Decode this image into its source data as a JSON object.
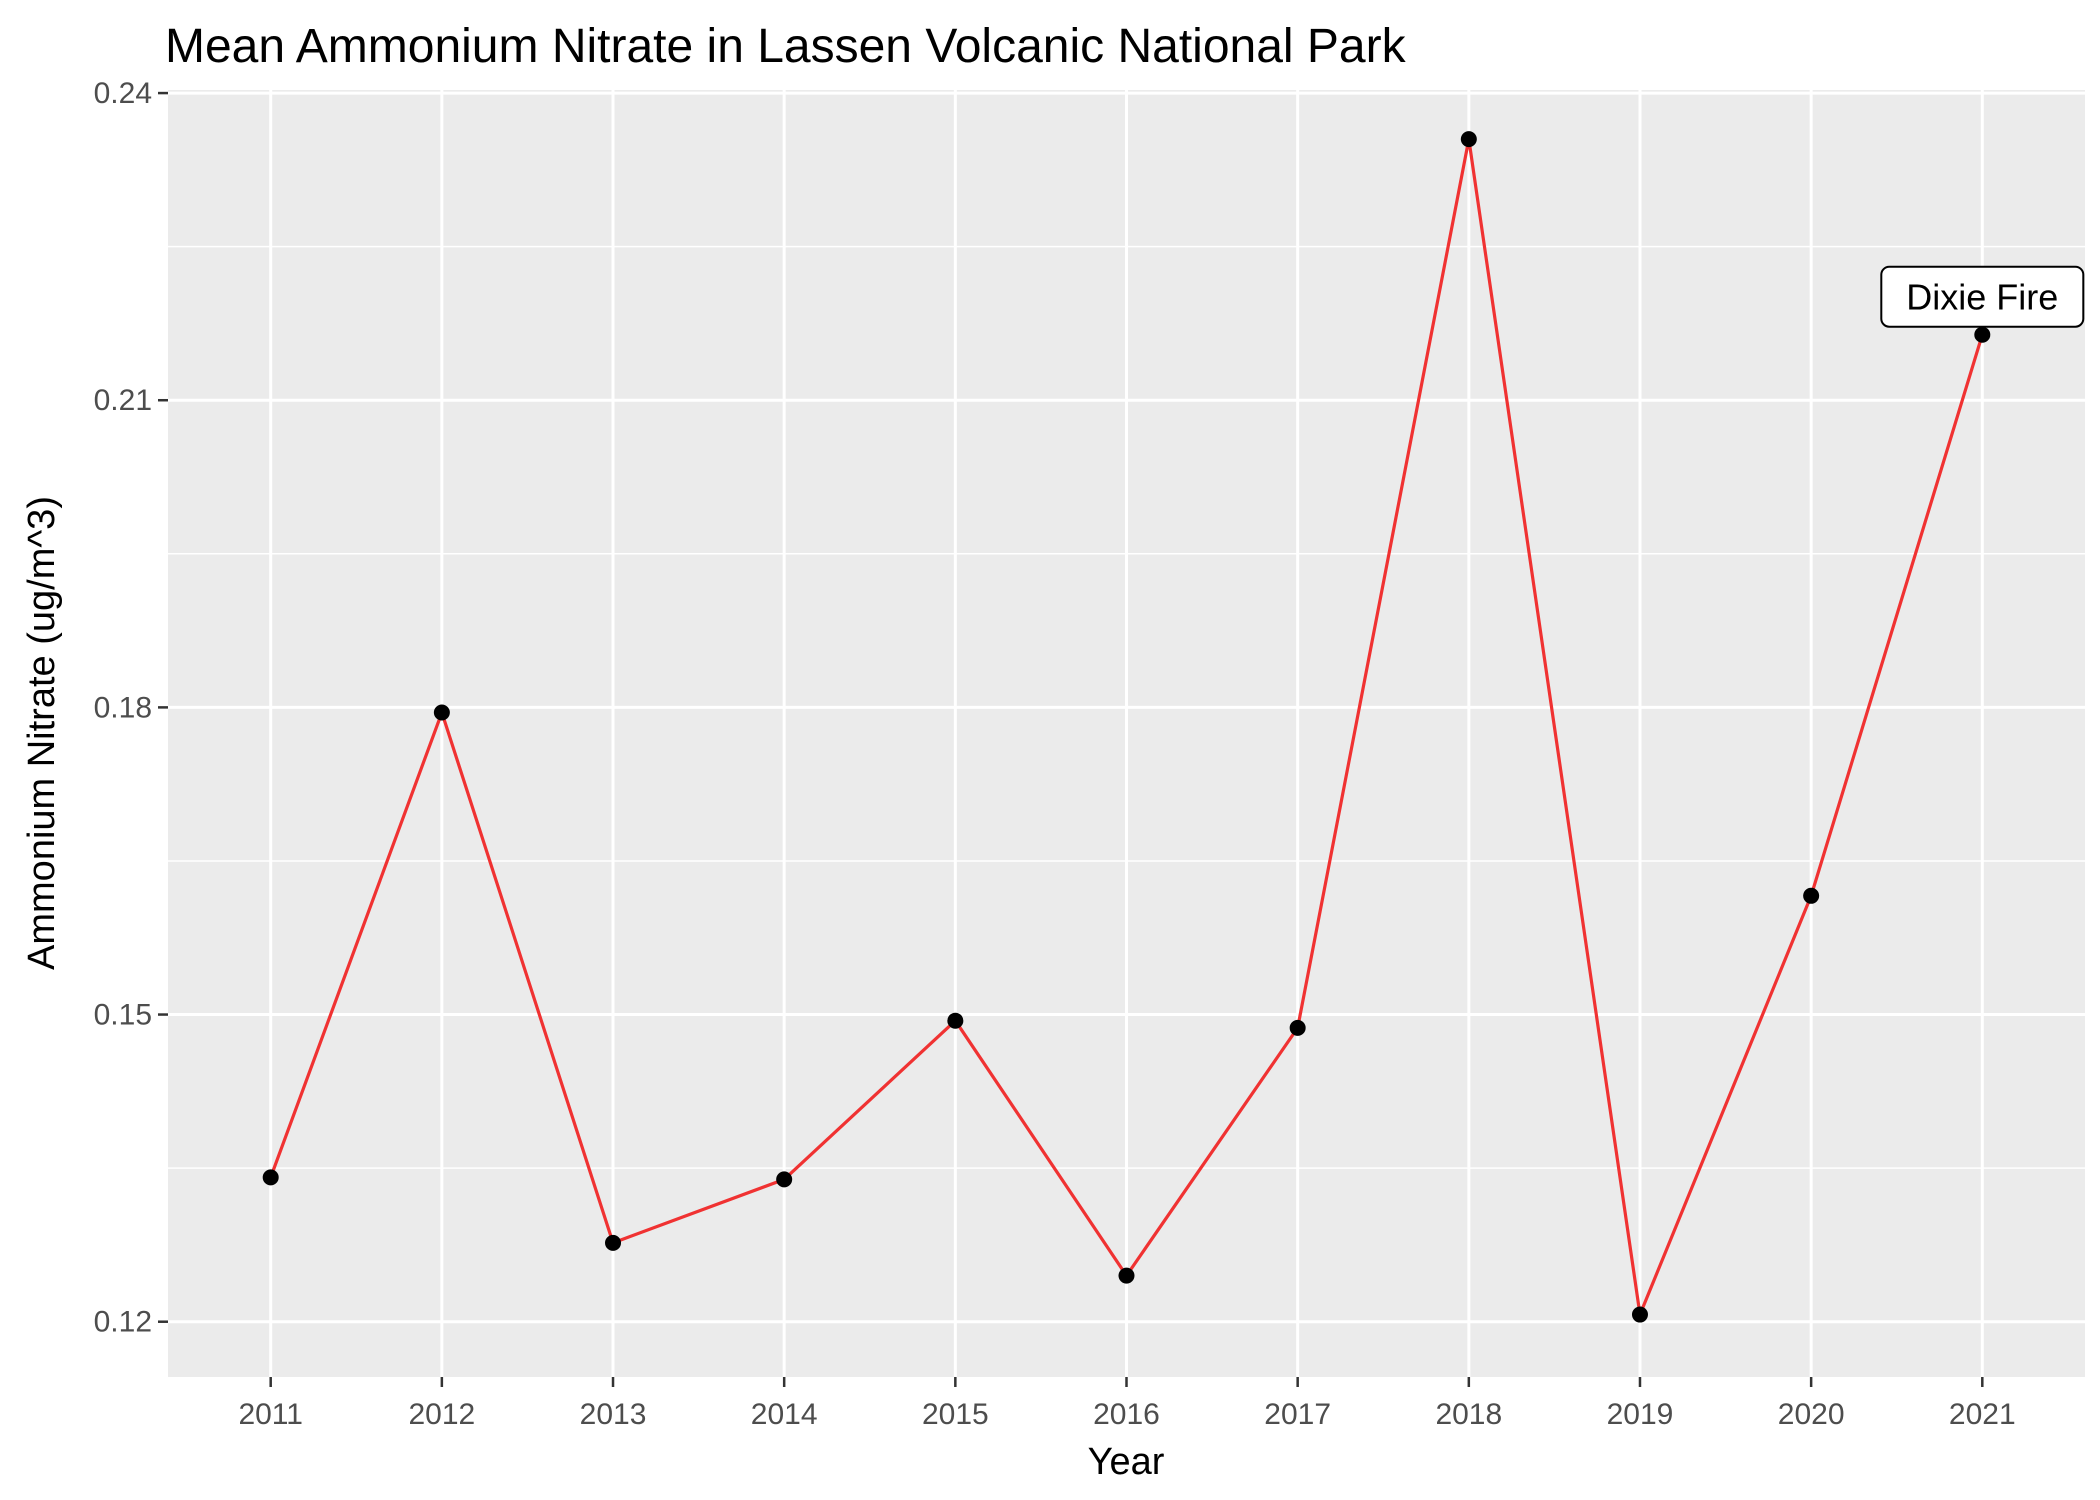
{
  "chart_data": {
    "type": "line",
    "title": "Mean Ammonium Nitrate in Lassen Volcanic National Park",
    "xlabel": "Year",
    "ylabel": "Ammonium Nitrate (ug/m^3)",
    "x": [
      2011,
      2012,
      2013,
      2014,
      2015,
      2016,
      2017,
      2018,
      2019,
      2020,
      2021
    ],
    "values": [
      0.1341,
      0.1795,
      0.1277,
      0.1339,
      0.1494,
      0.1245,
      0.1487,
      0.2355,
      0.1207,
      0.1616,
      0.2164
    ],
    "xticks": [
      "2011",
      "2012",
      "2013",
      "2014",
      "2015",
      "2016",
      "2017",
      "2018",
      "2019",
      "2020",
      "2021"
    ],
    "yticks": [
      0.12,
      0.15,
      0.18,
      0.21,
      0.24
    ],
    "ytick_labels": [
      "0.12",
      "0.15",
      "0.18",
      "0.21",
      "0.24"
    ],
    "ylim": [
      0.1146,
      0.2403
    ],
    "xlim": [
      2010.4,
      2021.6
    ],
    "grid": true,
    "line_color": "#f03232",
    "point_color": "#000000",
    "panel_color": "#ebebeb",
    "annotations": [
      {
        "x": 2021,
        "y": 0.2164,
        "text": "Dixie Fire"
      }
    ]
  }
}
